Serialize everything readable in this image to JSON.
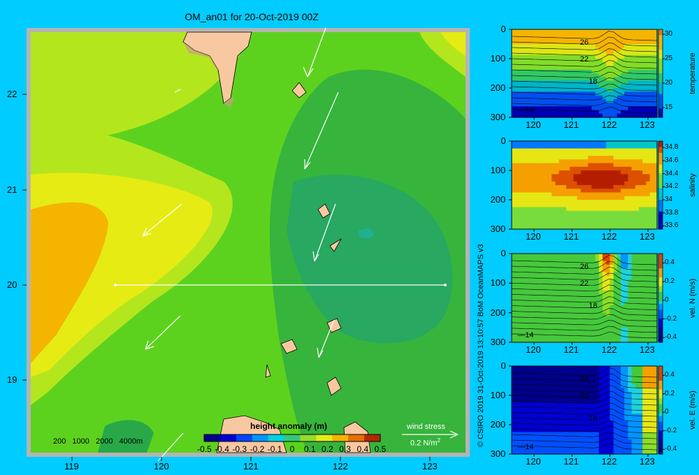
{
  "title": "OM_an01 for 20-Oct-2019 00Z",
  "credit": "© CSIRO 2019  31-Oct-2019 13:10:57 BoM OceanMAPS v3",
  "colors": {
    "background": "#00ccff",
    "land": "#f8c8a0",
    "frame": "#b4b4b4",
    "section_line": "#ffffff"
  },
  "chart_data": [
    {
      "type": "heatmap",
      "panel": "map",
      "title": "height anomaly (m)",
      "x_ticks": [
        119,
        120,
        121,
        122,
        123
      ],
      "y_ticks": [
        22,
        21,
        20,
        19
      ],
      "xlim": [
        118.5,
        123.5
      ],
      "ylim": [
        18.3,
        22.7
      ],
      "colorbar_ticks": [
        "-0.5",
        "-0.4",
        "-0.3",
        "-0.2",
        "-0.1",
        "0",
        "0.1",
        "0.2",
        "0.3",
        "0.4",
        "0.5"
      ],
      "isobath_labels": [
        "200",
        "1000",
        "2000",
        "4000m"
      ],
      "wind_stress_label": "wind stress",
      "wind_stress_scale": "0.2 N/m",
      "wind_stress_exponent": "2",
      "section": {
        "lat": 20.0,
        "lon_start": 119.5,
        "lon_end": 123.2
      }
    },
    {
      "type": "heatmap",
      "panel": "temperature",
      "colorbar_label": "temperature",
      "colorbar_ticks": [
        30,
        25,
        20,
        15
      ],
      "colorbar_range": [
        13,
        31
      ],
      "x_ticks": [
        120,
        121,
        122,
        123
      ],
      "y_ticks": [
        0,
        100,
        200,
        300
      ],
      "ylim": [
        300,
        0
      ],
      "contour_labels": [
        "26",
        "22",
        "18",
        "14"
      ]
    },
    {
      "type": "heatmap",
      "panel": "salinity",
      "colorbar_label": "salinity",
      "colorbar_ticks": [
        "34.8",
        "34.6",
        "34.4",
        "34.2",
        "34",
        "33.8",
        "33.6"
      ],
      "colorbar_range": [
        33.55,
        34.9
      ],
      "x_ticks": [
        120,
        121,
        122,
        123
      ],
      "y_ticks": [
        0,
        100,
        200,
        300
      ],
      "ylim": [
        300,
        0
      ],
      "contour_labels": []
    },
    {
      "type": "heatmap",
      "panel": "vel_n",
      "colorbar_label": "vel. N (m/s)",
      "colorbar_ticks": [
        "0.4",
        "0.2",
        "0",
        "-0.2",
        "-0.4"
      ],
      "colorbar_range": [
        -0.45,
        0.5
      ],
      "x_ticks": [
        120,
        121,
        122,
        123
      ],
      "y_ticks": [
        0,
        100,
        200,
        300
      ],
      "ylim": [
        300,
        0
      ],
      "contour_labels": [
        "26",
        "22",
        "18",
        "14"
      ]
    },
    {
      "type": "heatmap",
      "panel": "vel_e",
      "colorbar_label": "vel. E (m/s)",
      "colorbar_ticks": [
        "0.4",
        "0.2",
        "0",
        "-0.2",
        "-0.4"
      ],
      "colorbar_range": [
        -0.45,
        0.5
      ],
      "x_ticks": [
        120,
        121,
        122,
        123
      ],
      "y_ticks": [
        0,
        100,
        200,
        300
      ],
      "ylim": [
        300,
        0
      ],
      "contour_labels": [
        "26",
        "22",
        "18",
        "14"
      ]
    }
  ]
}
